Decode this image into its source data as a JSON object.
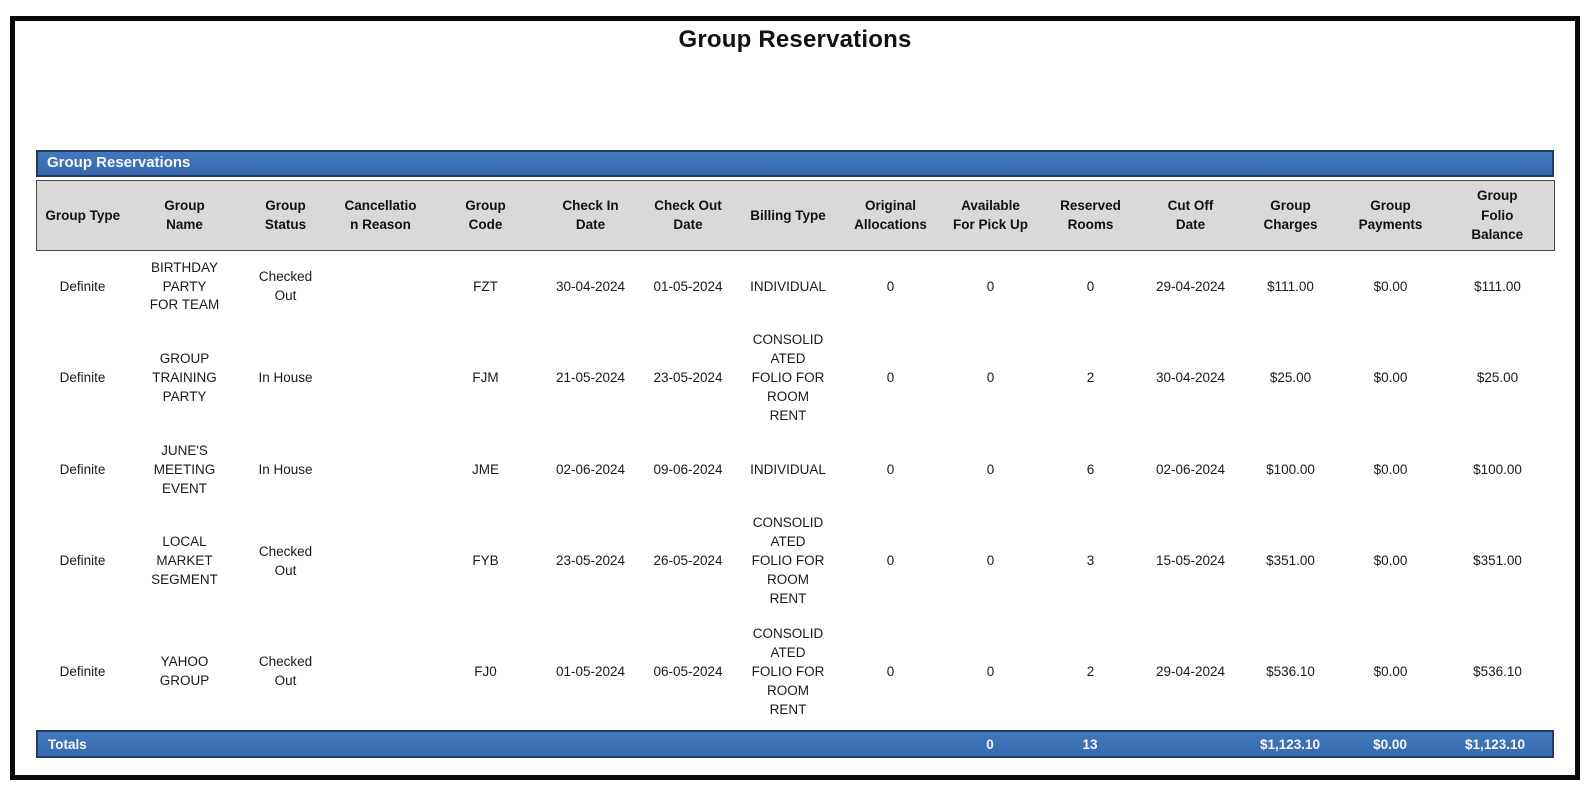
{
  "page": {
    "title": "Group Reservations"
  },
  "report": {
    "section_title": "Group Reservations",
    "columns": [
      {
        "id": "group_type",
        "label": "Group Type"
      },
      {
        "id": "group_name",
        "label": "Group\nName"
      },
      {
        "id": "group_status",
        "label": "Group\nStatus"
      },
      {
        "id": "cancellation_reason",
        "label": "Cancellatio\nn Reason"
      },
      {
        "id": "group_code",
        "label": "Group\nCode"
      },
      {
        "id": "check_in_date",
        "label": "Check In\nDate"
      },
      {
        "id": "check_out_date",
        "label": "Check Out\nDate"
      },
      {
        "id": "billing_type",
        "label": "Billing Type"
      },
      {
        "id": "original_allocations",
        "label": "Original\nAllocations"
      },
      {
        "id": "available_for_pick_up",
        "label": "Available\nFor Pick Up"
      },
      {
        "id": "reserved_rooms",
        "label": "Reserved\nRooms"
      },
      {
        "id": "cut_off_date",
        "label": "Cut Off\nDate"
      },
      {
        "id": "group_charges",
        "label": "Group\nCharges"
      },
      {
        "id": "group_payments",
        "label": "Group\nPayments"
      },
      {
        "id": "group_folio_balance",
        "label": "Group\nFolio\nBalance"
      }
    ],
    "rows": [
      {
        "group_type": "Definite",
        "group_name": "BIRTHDAY\nPARTY\nFOR TEAM",
        "group_status": "Checked\nOut",
        "cancellation_reason": "",
        "group_code": "FZT",
        "check_in_date": "30-04-2024",
        "check_out_date": "01-05-2024",
        "billing_type": "INDIVIDUAL",
        "original_allocations": "0",
        "available_for_pick_up": "0",
        "reserved_rooms": "0",
        "cut_off_date": "29-04-2024",
        "group_charges": "$111.00",
        "group_payments": "$0.00",
        "group_folio_balance": "$111.00"
      },
      {
        "group_type": "Definite",
        "group_name": "GROUP\nTRAINING\nPARTY",
        "group_status": "In House",
        "cancellation_reason": "",
        "group_code": "FJM",
        "check_in_date": "21-05-2024",
        "check_out_date": "23-05-2024",
        "billing_type": "CONSOLID\nATED\nFOLIO FOR\nROOM\nRENT",
        "original_allocations": "0",
        "available_for_pick_up": "0",
        "reserved_rooms": "2",
        "cut_off_date": "30-04-2024",
        "group_charges": "$25.00",
        "group_payments": "$0.00",
        "group_folio_balance": "$25.00"
      },
      {
        "group_type": "Definite",
        "group_name": "JUNE'S\nMEETING\nEVENT",
        "group_status": "In House",
        "cancellation_reason": "",
        "group_code": "JME",
        "check_in_date": "02-06-2024",
        "check_out_date": "09-06-2024",
        "billing_type": "INDIVIDUAL",
        "original_allocations": "0",
        "available_for_pick_up": "0",
        "reserved_rooms": "6",
        "cut_off_date": "02-06-2024",
        "group_charges": "$100.00",
        "group_payments": "$0.00",
        "group_folio_balance": "$100.00"
      },
      {
        "group_type": "Definite",
        "group_name": "LOCAL\nMARKET\nSEGMENT",
        "group_status": "Checked\nOut",
        "cancellation_reason": "",
        "group_code": "FYB",
        "check_in_date": "23-05-2024",
        "check_out_date": "26-05-2024",
        "billing_type": "CONSOLID\nATED\nFOLIO FOR\nROOM\nRENT",
        "original_allocations": "0",
        "available_for_pick_up": "0",
        "reserved_rooms": "3",
        "cut_off_date": "15-05-2024",
        "group_charges": "$351.00",
        "group_payments": "$0.00",
        "group_folio_balance": "$351.00"
      },
      {
        "group_type": "Definite",
        "group_name": "YAHOO\nGROUP",
        "group_status": "Checked\nOut",
        "cancellation_reason": "",
        "group_code": "FJ0",
        "check_in_date": "01-05-2024",
        "check_out_date": "06-05-2024",
        "billing_type": "CONSOLID\nATED\nFOLIO FOR\nROOM\nRENT",
        "original_allocations": "0",
        "available_for_pick_up": "0",
        "reserved_rooms": "2",
        "cut_off_date": "29-04-2024",
        "group_charges": "$536.10",
        "group_payments": "$0.00",
        "group_folio_balance": "$536.10"
      }
    ],
    "totals": {
      "label": "Totals",
      "available_for_pick_up": "0",
      "reserved_rooms": "13",
      "group_charges": "$1,123.10",
      "group_payments": "$0.00",
      "group_folio_balance": "$1,123.10"
    }
  },
  "colors": {
    "accent_blue": "#3B70B6",
    "accent_blue_border": "#1E3C64",
    "header_gray": "#D9D9D9",
    "page_border": "#0A0A0A"
  }
}
